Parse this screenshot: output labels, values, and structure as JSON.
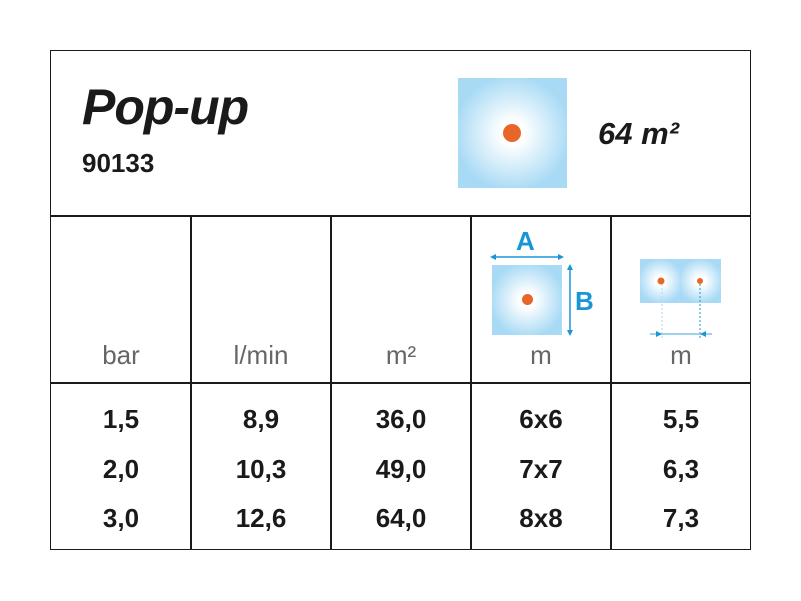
{
  "product": {
    "name": "Pop-up",
    "code": "90133",
    "coverage": "64 m²"
  },
  "headers": {
    "pressure": "bar",
    "flow": "l/min",
    "area": "m²",
    "dimensions": "m",
    "spacing": "m",
    "label_a": "A",
    "label_b": "B"
  },
  "rows": [
    [
      "1,5",
      "8,9",
      "36,0",
      "6x6",
      "5,5"
    ],
    [
      "2,0",
      "10,3",
      "49,0",
      "7x7",
      "6,3"
    ],
    [
      "3,0",
      "12,6",
      "64,0",
      "8x8",
      "7,3"
    ]
  ],
  "colors": {
    "spray": "#a8daf5",
    "nozzle": "#e8662a",
    "dimension": "#1a95d6"
  }
}
